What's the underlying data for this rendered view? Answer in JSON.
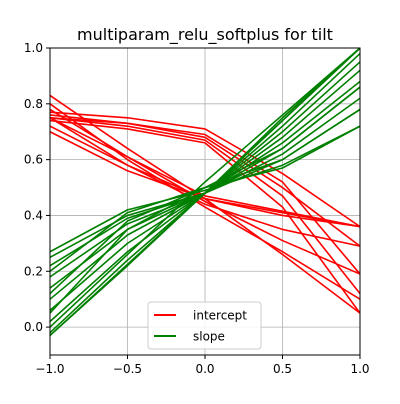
{
  "chart_data": {
    "type": "line",
    "title": "multiparam_relu_softplus for tilt",
    "xlabel": "",
    "ylabel": "",
    "xlim": [
      -1.0,
      1.0
    ],
    "ylim": [
      -0.1,
      1.0
    ],
    "xticks": [
      -1.0,
      -0.5,
      0.0,
      0.5,
      1.0
    ],
    "xtick_labels": [
      "−1.0",
      "−0.5",
      "0.0",
      "0.5",
      "1.0"
    ],
    "yticks": [
      0.0,
      0.2,
      0.4,
      0.6,
      0.8,
      1.0
    ],
    "ytick_labels": [
      "0.0",
      "0.2",
      "0.4",
      "0.6",
      "0.8",
      "1.0"
    ],
    "grid": true,
    "legend_position": "lower center",
    "series": [
      {
        "name": "intercept",
        "color": "#ff0000",
        "lines": [
          {
            "x": [
              -1,
              -0.5,
              0,
              0.5,
              1
            ],
            "y": [
              0.83,
              0.64,
              0.46,
              0.26,
              0.05
            ]
          },
          {
            "x": [
              -1,
              -0.5,
              0,
              0.5,
              1
            ],
            "y": [
              0.8,
              0.6,
              0.43,
              0.27,
              0.1
            ]
          },
          {
            "x": [
              -1,
              -0.5,
              0,
              0.5,
              1
            ],
            "y": [
              0.78,
              0.61,
              0.45,
              0.31,
              0.19
            ]
          },
          {
            "x": [
              -1,
              -0.5,
              0,
              0.5,
              1
            ],
            "y": [
              0.75,
              0.58,
              0.44,
              0.35,
              0.29
            ]
          },
          {
            "x": [
              -1,
              -0.5,
              0,
              0.5,
              1
            ],
            "y": [
              0.72,
              0.58,
              0.46,
              0.4,
              0.36
            ]
          },
          {
            "x": [
              -1,
              -0.5,
              0,
              0.5,
              1
            ],
            "y": [
              0.7,
              0.56,
              0.46,
              0.41,
              0.36
            ]
          },
          {
            "x": [
              -1,
              -0.5,
              0,
              0.5,
              1
            ],
            "y": [
              0.77,
              0.75,
              0.71,
              0.55,
              0.36
            ]
          },
          {
            "x": [
              -1,
              -0.5,
              0,
              0.5,
              1
            ],
            "y": [
              0.76,
              0.73,
              0.69,
              0.52,
              0.19
            ]
          },
          {
            "x": [
              -1,
              -0.5,
              0,
              0.5,
              1
            ],
            "y": [
              0.75,
              0.72,
              0.67,
              0.47,
              0.12
            ]
          },
          {
            "x": [
              -1,
              -0.5,
              0,
              0.5,
              1
            ],
            "y": [
              0.74,
              0.71,
              0.66,
              0.43,
              0.05
            ]
          },
          {
            "x": [
              -1,
              -0.5,
              0,
              0.5,
              1
            ],
            "y": [
              0.75,
              0.73,
              0.68,
              0.5,
              0.29
            ]
          },
          {
            "x": [
              -1,
              0,
              1
            ],
            "y": [
              0.75,
              0.47,
              0.36
            ]
          }
        ]
      },
      {
        "name": "slope",
        "color": "#008000",
        "lines": [
          {
            "x": [
              -1,
              -0.5,
              0,
              0.5,
              1
            ],
            "y": [
              0.27,
              0.42,
              0.49,
              0.58,
              0.72
            ]
          },
          {
            "x": [
              -1,
              -0.5,
              0,
              0.5,
              1
            ],
            "y": [
              0.25,
              0.4,
              0.48,
              0.6,
              0.78
            ]
          },
          {
            "x": [
              -1,
              -0.5,
              0,
              0.5,
              1
            ],
            "y": [
              0.22,
              0.39,
              0.48,
              0.62,
              0.82
            ]
          },
          {
            "x": [
              -1,
              -0.5,
              0,
              0.5,
              1
            ],
            "y": [
              0.18,
              0.37,
              0.48,
              0.64,
              0.86
            ]
          },
          {
            "x": [
              -1,
              -0.5,
              0,
              0.5,
              1
            ],
            "y": [
              0.14,
              0.35,
              0.48,
              0.66,
              0.88
            ]
          },
          {
            "x": [
              -1,
              -0.5,
              0,
              0.5,
              1
            ],
            "y": [
              0.1,
              0.33,
              0.48,
              0.68,
              0.92
            ]
          },
          {
            "x": [
              -1,
              -0.5,
              0,
              0.5,
              1
            ],
            "y": [
              0.06,
              0.3,
              0.48,
              0.7,
              0.95
            ]
          },
          {
            "x": [
              -1,
              -0.5,
              0,
              0.5,
              1
            ],
            "y": [
              0.02,
              0.27,
              0.48,
              0.72,
              0.98
            ]
          },
          {
            "x": [
              -1,
              -0.5,
              0,
              0.5,
              1
            ],
            "y": [
              -0.02,
              0.24,
              0.48,
              0.74,
              1.0
            ]
          },
          {
            "x": [
              -1,
              -0.5,
              0,
              0.5,
              1
            ],
            "y": [
              -0.03,
              0.22,
              0.48,
              0.75,
              1.0
            ]
          },
          {
            "x": [
              -1,
              -0.5,
              0,
              0.5,
              1
            ],
            "y": [
              0.2,
              0.41,
              0.5,
              0.57,
              0.72
            ]
          },
          {
            "x": [
              -1,
              -0.5,
              0,
              0.5,
              1
            ],
            "y": [
              0.12,
              0.38,
              0.5,
              0.6,
              0.78
            ]
          },
          {
            "x": [
              -1,
              -0.5,
              0,
              0.5,
              1
            ],
            "y": [
              0.05,
              0.35,
              0.5,
              0.64,
              0.86
            ]
          },
          {
            "x": [
              -1,
              0,
              1
            ],
            "y": [
              -0.03,
              0.48,
              1.0
            ]
          },
          {
            "x": [
              -1,
              0,
              1
            ],
            "y": [
              0.0,
              0.52,
              1.0
            ]
          }
        ]
      }
    ]
  }
}
